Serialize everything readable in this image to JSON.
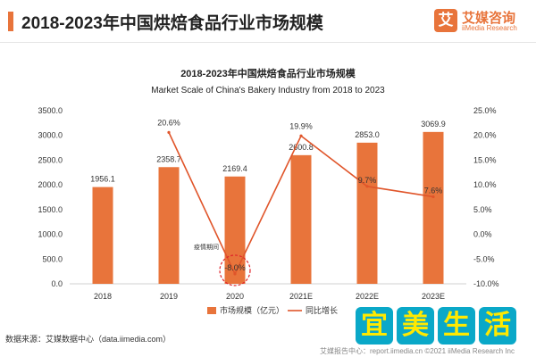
{
  "header": {
    "title": "2018-2023年中国烘焙食品行业市场规模"
  },
  "logo": {
    "mark": "艾",
    "name": "艾媒咨询",
    "sub": "iiMedia Research",
    "color": "#e8743b"
  },
  "chart_data": {
    "type": "bar",
    "title": "2018-2023年中国烘焙食品行业市场规模",
    "subtitle": "Market Scale of China's Bakery Industry from 2018 to 2023",
    "categories": [
      "2018",
      "2019",
      "2020",
      "2021E",
      "2022E",
      "2023E"
    ],
    "series": [
      {
        "name": "市场规模（亿元）",
        "type": "bar",
        "axis": "left",
        "color": "#e8743b",
        "values": [
          1956.1,
          2358.7,
          2169.4,
          2600.8,
          2853.0,
          3069.9
        ],
        "labels": [
          "1956.1",
          "2358.7",
          "2169.4",
          "2600.8",
          "2853.0",
          "3069.9"
        ]
      },
      {
        "name": "同比增长",
        "type": "line",
        "axis": "right",
        "color": "#e0552a",
        "values": [
          null,
          20.6,
          -8.0,
          19.9,
          9.7,
          7.6
        ],
        "labels": [
          "",
          "20.6%",
          "-8.0%",
          "19.9%",
          "9.7%",
          "7.6%"
        ]
      }
    ],
    "y_left": {
      "range": [
        0,
        3500
      ],
      "ticks": [
        "0.0",
        "500.0",
        "1000.0",
        "1500.0",
        "2000.0",
        "2500.0",
        "3000.0",
        "3500.0"
      ]
    },
    "y_right": {
      "range": [
        -10,
        25
      ],
      "ticks": [
        "-10.0%",
        "-5.0%",
        "0.0%",
        "5.0%",
        "10.0%",
        "15.0%",
        "20.0%",
        "25.0%"
      ]
    },
    "annotation": {
      "text": "疫情期间",
      "category": "2020"
    },
    "grid": false,
    "legend": "bottom"
  },
  "footer": {
    "source": "数据来源：艾媒数据中心（data.iimedia.com）",
    "note": "艾媒报告中心：report.iimedia.cn  ©2021  iiMedia Research  Inc"
  },
  "watermark": {
    "chars": [
      "宜",
      "美",
      "生",
      "活"
    ],
    "bg_color": "#0aa8c8",
    "text_color": "#ffe900"
  }
}
